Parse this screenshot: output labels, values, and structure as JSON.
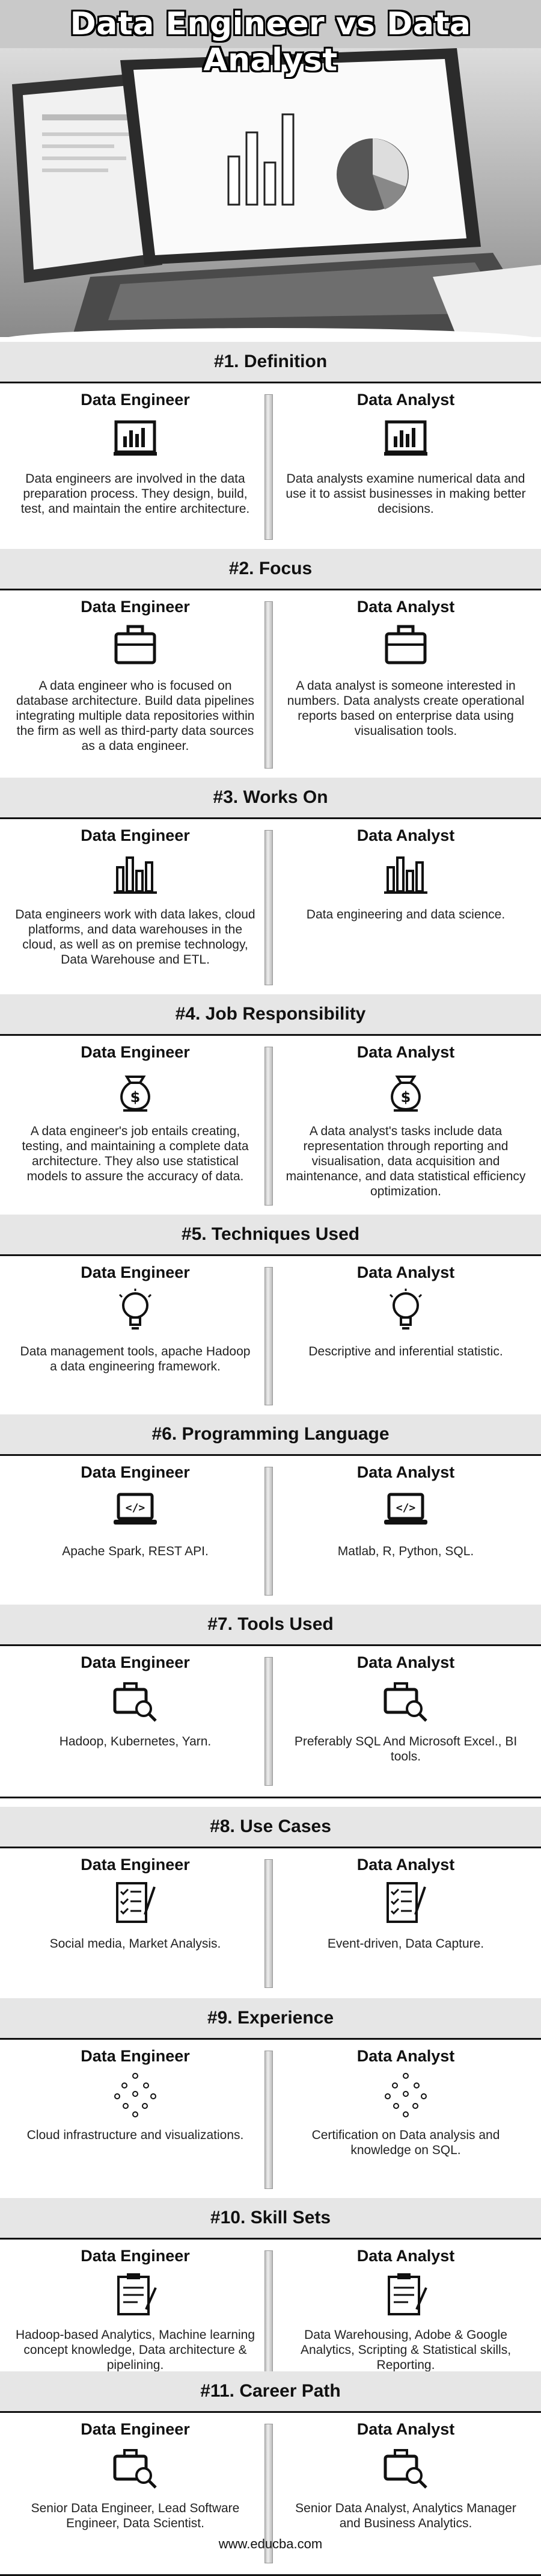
{
  "title": "Data Engineer vs Data Analyst",
  "column_headers": {
    "left": "Data Engineer",
    "right": "Data Analyst"
  },
  "sections": [
    {
      "heading": "#1. Definition",
      "icon": "chart-board-icon",
      "left": "Data engineers are involved in the data preparation process. They design, build, test, and maintain the entire architecture.",
      "right": "Data analysts examine numerical data and use it to assist businesses in making better decisions."
    },
    {
      "heading": "#2. Focus",
      "icon": "briefcase-icon",
      "left": "A data engineer who is focused on database architecture. Build data pipelines integrating multiple data repositories within the firm as well as third-party data sources as a data engineer.",
      "right": "A data analyst is someone interested in numbers. Data analysts create operational reports based on enterprise data using visualisation tools."
    },
    {
      "heading": "#3. Works On",
      "icon": "bar-chart-icon",
      "left": "Data engineers work with data lakes, cloud platforms, and data warehouses in the cloud, as well as on premise technology, Data Warehouse and ETL.",
      "right": "Data engineering and data science."
    },
    {
      "heading": "#4. Job Responsibility",
      "icon": "money-bag-icon",
      "left": "A data engineer's job entails creating, testing, and maintaining a complete data architecture. They also use statistical models to assure the accuracy of data.",
      "right": "A data analyst's tasks include data representation through reporting and visualisation, data acquisition and maintenance, and data statistical efficiency optimization."
    },
    {
      "heading": "#5. Techniques Used",
      "icon": "lightbulb-icon",
      "left": "Data management tools, apache Hadoop a data engineering framework.",
      "right": "Descriptive and inferential statistic."
    },
    {
      "heading": "#6. Programming Language",
      "icon": "laptop-code-icon",
      "left": "Apache Spark, REST API.",
      "right": "Matlab, R, Python, SQL."
    },
    {
      "heading": "#7. Tools Used",
      "icon": "briefcase-search-icon",
      "left": "Hadoop, Kubernetes, Yarn.",
      "right": "Preferably SQL And Microsoft Excel., BI tools."
    },
    {
      "heading": "#8. Use Cases",
      "icon": "checklist-icon",
      "left": "Social media, Market Analysis.",
      "right": "Event-driven, Data Capture."
    },
    {
      "heading": "#9. Experience",
      "icon": "network-nodes-icon",
      "left": "Cloud infrastructure and visualizations.",
      "right": "Certification on Data analysis and knowledge on SQL."
    },
    {
      "heading": "#10. Skill Sets",
      "icon": "clipboard-icon",
      "left": "Hadoop-based Analytics, Machine learning concept knowledge, Data architecture & pipelining.",
      "right": "Data Warehousing, Adobe & Google Analytics, Scripting & Statistical skills, Reporting."
    },
    {
      "heading": "#11. Career Path",
      "icon": "briefcase-search-icon",
      "left": "Senior Data Engineer, Lead Software Engineer, Data Scientist.",
      "right": "Senior Data Analyst, Analytics Manager and Business Analytics."
    }
  ],
  "footer": "www.educba.com"
}
